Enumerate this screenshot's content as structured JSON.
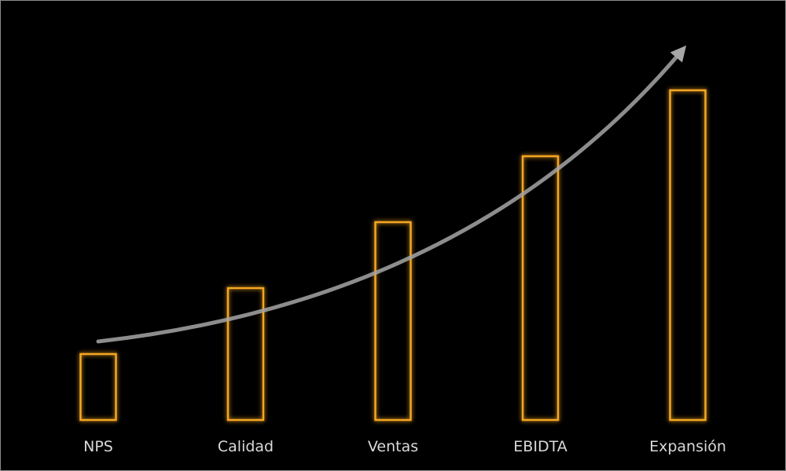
{
  "chart_data": {
    "type": "bar",
    "title": "",
    "xlabel": "",
    "ylabel": "",
    "categories": [
      "NPS",
      "Calidad",
      "Ventas",
      "EBIDTA",
      "Expansión"
    ],
    "values": [
      1,
      2,
      3,
      4,
      5
    ],
    "ylim": [
      0,
      5
    ],
    "grid": false,
    "axes_visible": false,
    "bar_style": "outline-glow",
    "annotations": [
      {
        "type": "curved-arrow",
        "direction": "up-right",
        "meaning": "growth trend"
      }
    ],
    "colors": {
      "background": "#000000",
      "bar_outline": "#f5a623",
      "arrow": "#a6a6a6",
      "label": "#d9d9d9"
    }
  }
}
